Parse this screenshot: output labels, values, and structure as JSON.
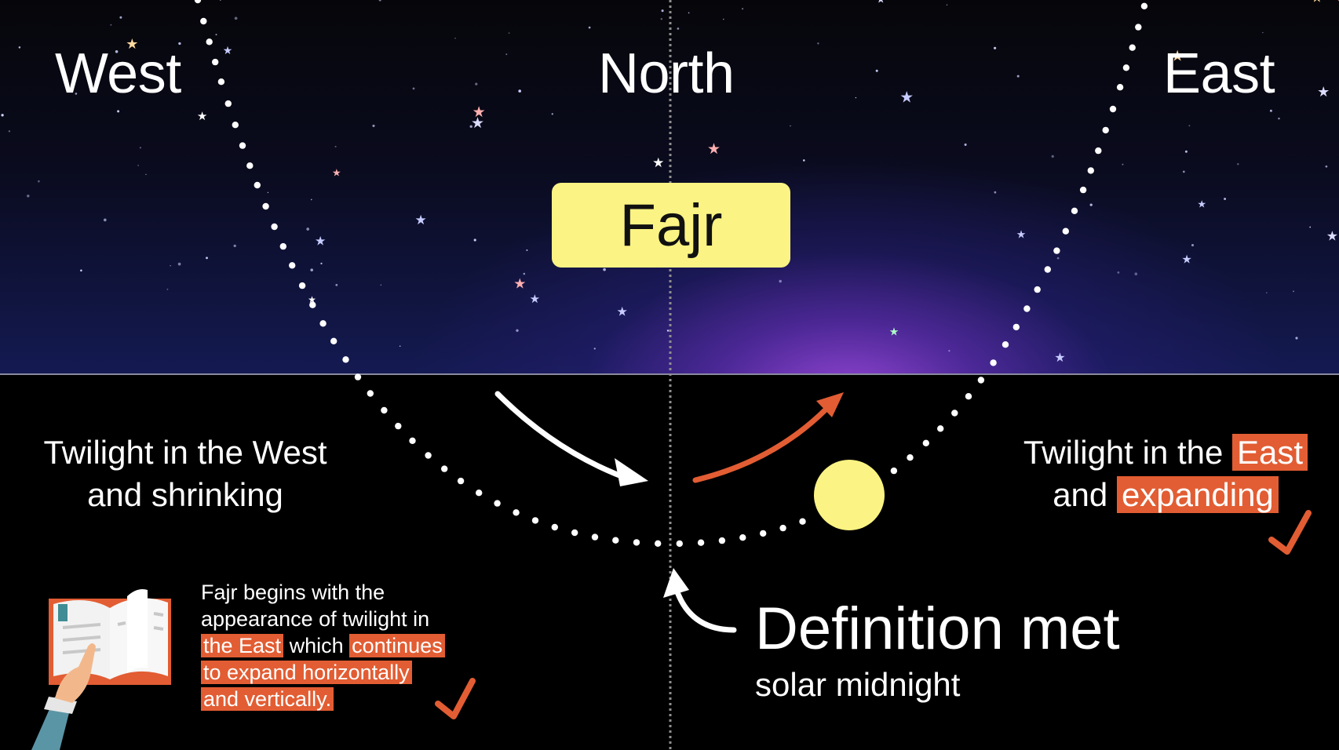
{
  "directions": {
    "west": "West",
    "north": "North",
    "east": "East"
  },
  "prayer_label": "Fajr",
  "west_note": {
    "line1": "Twilight in the West",
    "line2": "and shrinking"
  },
  "east_note": {
    "line1_prefix": "Twilight in the ",
    "line1_highlight": "East",
    "line2_prefix": "and ",
    "line2_highlight": "expanding"
  },
  "book_note": {
    "line1": "Fajr begins with the",
    "line2": "appearance of twilight in",
    "line3_highlight_a": "the East",
    "line3_mid": " which ",
    "line3_highlight_b": "continues",
    "line4_highlight": "to expand horizontally",
    "line5_highlight": "and vertically."
  },
  "definition": {
    "title": "Definition met",
    "subtitle": "solar midnight"
  },
  "colors": {
    "accent_orange": "#e25d33",
    "sun_yellow": "#fbf383",
    "badge_yellow": "#fbf383"
  },
  "icons": [
    "book-icon",
    "pointing-hand-icon",
    "checkmark-icon",
    "sun-icon",
    "arrow-icon"
  ]
}
